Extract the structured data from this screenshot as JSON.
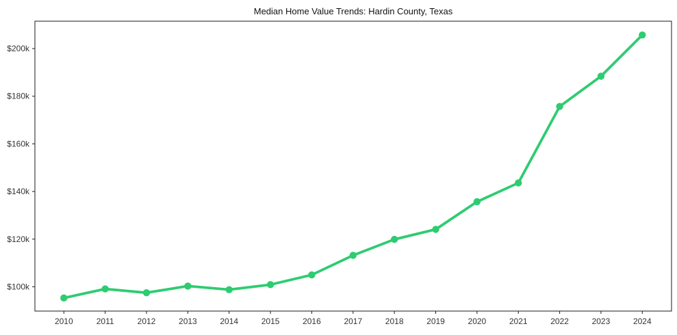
{
  "figure": {
    "title": "Median Home Value Trends: Hardin County, Texas"
  },
  "chart_data": {
    "type": "line",
    "title": "Median Home Value Trends: Hardin County, Texas",
    "x": [
      2010,
      2011,
      2012,
      2013,
      2014,
      2015,
      2016,
      2017,
      2018,
      2019,
      2020,
      2021,
      2022,
      2023,
      2024
    ],
    "series": [
      {
        "name": "Median Home Value",
        "values": [
          95300,
          99100,
          97500,
          100300,
          98800,
          100900,
          105000,
          113200,
          119900,
          124100,
          135700,
          143600,
          175700,
          188400,
          205700
        ]
      }
    ],
    "xlabel": "",
    "ylabel": "",
    "ylim": [
      89800,
      211500
    ],
    "y_ticks": [
      {
        "value": 100000,
        "label": "$100k"
      },
      {
        "value": 120000,
        "label": "$120k"
      },
      {
        "value": 140000,
        "label": "$140k"
      },
      {
        "value": 160000,
        "label": "$160k"
      },
      {
        "value": 180000,
        "label": "$180k"
      },
      {
        "value": 200000,
        "label": "$200k"
      }
    ],
    "grid": false,
    "legend": false,
    "marker": "circle",
    "colors": {
      "line": "#2ecc71",
      "marker": "#2ecc71",
      "axis": "#1a1a1a",
      "tick_text": "#333333",
      "title_text": "#111111",
      "background": "#ffffff"
    }
  }
}
